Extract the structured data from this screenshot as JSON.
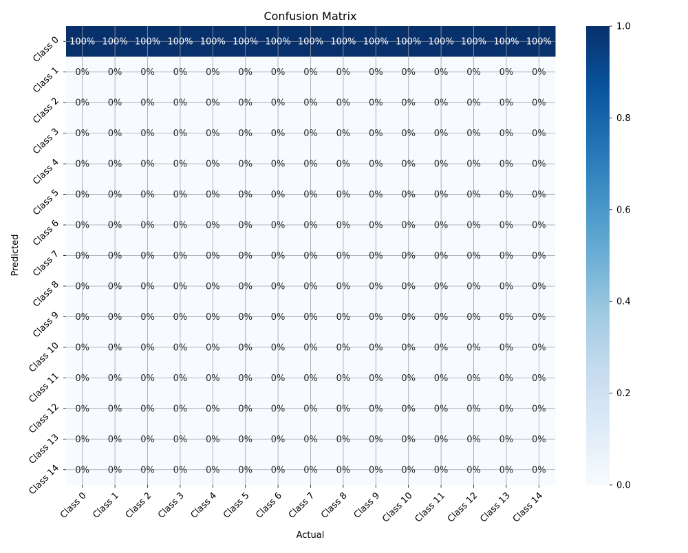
{
  "chart_data": {
    "type": "heatmap",
    "title": "Confusion Matrix",
    "xlabel": "Actual",
    "ylabel": "Predicted",
    "x_categories": [
      "Class 0",
      "Class 1",
      "Class 2",
      "Class 3",
      "Class 4",
      "Class 5",
      "Class 6",
      "Class 7",
      "Class 8",
      "Class 9",
      "Class 10",
      "Class 11",
      "Class 12",
      "Class 13",
      "Class 14"
    ],
    "y_categories": [
      "Class 0",
      "Class 1",
      "Class 2",
      "Class 3",
      "Class 4",
      "Class 5",
      "Class 6",
      "Class 7",
      "Class 8",
      "Class 9",
      "Class 10",
      "Class 11",
      "Class 12",
      "Class 13",
      "Class 14"
    ],
    "values": [
      [
        1,
        1,
        1,
        1,
        1,
        1,
        1,
        1,
        1,
        1,
        1,
        1,
        1,
        1,
        1
      ],
      [
        0,
        0,
        0,
        0,
        0,
        0,
        0,
        0,
        0,
        0,
        0,
        0,
        0,
        0,
        0
      ],
      [
        0,
        0,
        0,
        0,
        0,
        0,
        0,
        0,
        0,
        0,
        0,
        0,
        0,
        0,
        0
      ],
      [
        0,
        0,
        0,
        0,
        0,
        0,
        0,
        0,
        0,
        0,
        0,
        0,
        0,
        0,
        0
      ],
      [
        0,
        0,
        0,
        0,
        0,
        0,
        0,
        0,
        0,
        0,
        0,
        0,
        0,
        0,
        0
      ],
      [
        0,
        0,
        0,
        0,
        0,
        0,
        0,
        0,
        0,
        0,
        0,
        0,
        0,
        0,
        0
      ],
      [
        0,
        0,
        0,
        0,
        0,
        0,
        0,
        0,
        0,
        0,
        0,
        0,
        0,
        0,
        0
      ],
      [
        0,
        0,
        0,
        0,
        0,
        0,
        0,
        0,
        0,
        0,
        0,
        0,
        0,
        0,
        0
      ],
      [
        0,
        0,
        0,
        0,
        0,
        0,
        0,
        0,
        0,
        0,
        0,
        0,
        0,
        0,
        0
      ],
      [
        0,
        0,
        0,
        0,
        0,
        0,
        0,
        0,
        0,
        0,
        0,
        0,
        0,
        0,
        0
      ],
      [
        0,
        0,
        0,
        0,
        0,
        0,
        0,
        0,
        0,
        0,
        0,
        0,
        0,
        0,
        0
      ],
      [
        0,
        0,
        0,
        0,
        0,
        0,
        0,
        0,
        0,
        0,
        0,
        0,
        0,
        0,
        0
      ],
      [
        0,
        0,
        0,
        0,
        0,
        0,
        0,
        0,
        0,
        0,
        0,
        0,
        0,
        0,
        0
      ],
      [
        0,
        0,
        0,
        0,
        0,
        0,
        0,
        0,
        0,
        0,
        0,
        0,
        0,
        0,
        0
      ],
      [
        0,
        0,
        0,
        0,
        0,
        0,
        0,
        0,
        0,
        0,
        0,
        0,
        0,
        0,
        0
      ]
    ],
    "annotations": [
      [
        "100%",
        "100%",
        "100%",
        "100%",
        "100%",
        "100%",
        "100%",
        "100%",
        "100%",
        "100%",
        "100%",
        "100%",
        "100%",
        "100%",
        "100%"
      ],
      [
        "0%",
        "0%",
        "0%",
        "0%",
        "0%",
        "0%",
        "0%",
        "0%",
        "0%",
        "0%",
        "0%",
        "0%",
        "0%",
        "0%",
        "0%"
      ],
      [
        "0%",
        "0%",
        "0%",
        "0%",
        "0%",
        "0%",
        "0%",
        "0%",
        "0%",
        "0%",
        "0%",
        "0%",
        "0%",
        "0%",
        "0%"
      ],
      [
        "0%",
        "0%",
        "0%",
        "0%",
        "0%",
        "0%",
        "0%",
        "0%",
        "0%",
        "0%",
        "0%",
        "0%",
        "0%",
        "0%",
        "0%"
      ],
      [
        "0%",
        "0%",
        "0%",
        "0%",
        "0%",
        "0%",
        "0%",
        "0%",
        "0%",
        "0%",
        "0%",
        "0%",
        "0%",
        "0%",
        "0%"
      ],
      [
        "0%",
        "0%",
        "0%",
        "0%",
        "0%",
        "0%",
        "0%",
        "0%",
        "0%",
        "0%",
        "0%",
        "0%",
        "0%",
        "0%",
        "0%"
      ],
      [
        "0%",
        "0%",
        "0%",
        "0%",
        "0%",
        "0%",
        "0%",
        "0%",
        "0%",
        "0%",
        "0%",
        "0%",
        "0%",
        "0%",
        "0%"
      ],
      [
        "0%",
        "0%",
        "0%",
        "0%",
        "0%",
        "0%",
        "0%",
        "0%",
        "0%",
        "0%",
        "0%",
        "0%",
        "0%",
        "0%",
        "0%"
      ],
      [
        "0%",
        "0%",
        "0%",
        "0%",
        "0%",
        "0%",
        "0%",
        "0%",
        "0%",
        "0%",
        "0%",
        "0%",
        "0%",
        "0%",
        "0%"
      ],
      [
        "0%",
        "0%",
        "0%",
        "0%",
        "0%",
        "0%",
        "0%",
        "0%",
        "0%",
        "0%",
        "0%",
        "0%",
        "0%",
        "0%",
        "0%"
      ],
      [
        "0%",
        "0%",
        "0%",
        "0%",
        "0%",
        "0%",
        "0%",
        "0%",
        "0%",
        "0%",
        "0%",
        "0%",
        "0%",
        "0%",
        "0%"
      ],
      [
        "0%",
        "0%",
        "0%",
        "0%",
        "0%",
        "0%",
        "0%",
        "0%",
        "0%",
        "0%",
        "0%",
        "0%",
        "0%",
        "0%",
        "0%"
      ],
      [
        "0%",
        "0%",
        "0%",
        "0%",
        "0%",
        "0%",
        "0%",
        "0%",
        "0%",
        "0%",
        "0%",
        "0%",
        "0%",
        "0%",
        "0%"
      ],
      [
        "0%",
        "0%",
        "0%",
        "0%",
        "0%",
        "0%",
        "0%",
        "0%",
        "0%",
        "0%",
        "0%",
        "0%",
        "0%",
        "0%",
        "0%"
      ],
      [
        "0%",
        "0%",
        "0%",
        "0%",
        "0%",
        "0%",
        "0%",
        "0%",
        "0%",
        "0%",
        "0%",
        "0%",
        "0%",
        "0%",
        "0%"
      ]
    ],
    "colorbar": {
      "vmin": 0,
      "vmax": 1,
      "ticks": [
        0,
        0.2,
        0.4,
        0.6,
        0.8,
        1
      ],
      "tick_labels": [
        "0.0",
        "0.2",
        "0.4",
        "0.6",
        "0.8",
        "1.0"
      ],
      "colormap": "Blues",
      "stops": [
        "#f7fbff",
        "#deebf7",
        "#c6dbef",
        "#9ecae1",
        "#6baed6",
        "#4292c6",
        "#2171b5",
        "#08519c",
        "#08306b"
      ]
    },
    "grid": true,
    "grid_color": "#a0a0a0",
    "annotation_colors": {
      "on_light": "#262626",
      "on_dark": "#ffffff"
    }
  }
}
